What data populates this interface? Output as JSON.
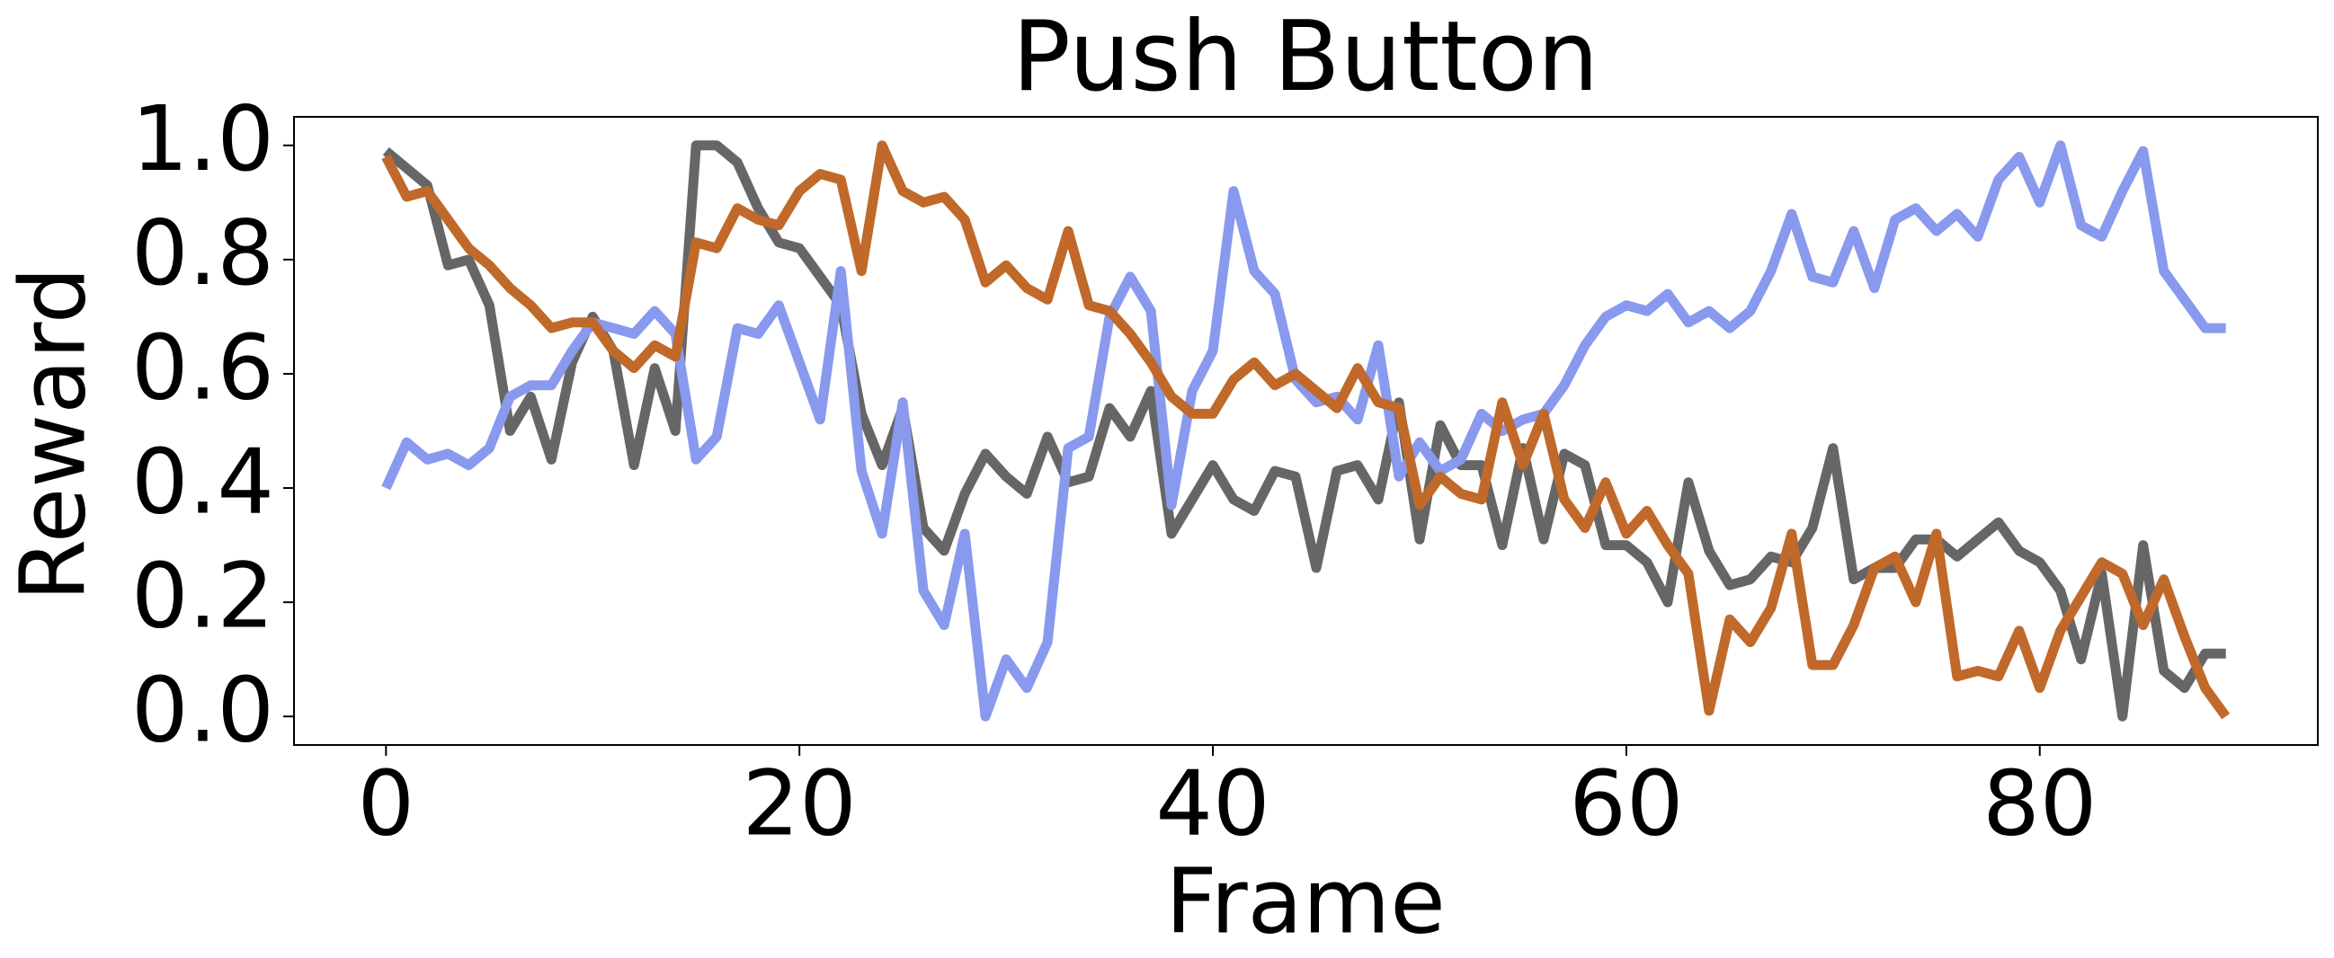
{
  "chart_data": {
    "type": "line",
    "title": "Push Button",
    "xlabel": "Frame",
    "ylabel": "Reward",
    "x": [
      0,
      1,
      2,
      3,
      4,
      5,
      6,
      7,
      8,
      9,
      10,
      11,
      12,
      13,
      14,
      15,
      16,
      17,
      18,
      19,
      20,
      21,
      22,
      23,
      24,
      25,
      26,
      27,
      28,
      29,
      30,
      31,
      32,
      33,
      34,
      35,
      36,
      37,
      38,
      39,
      40,
      41,
      42,
      43,
      44,
      45,
      46,
      47,
      48,
      49,
      50,
      51,
      52,
      53,
      54,
      55,
      56,
      57,
      58,
      59,
      60,
      61,
      62,
      63,
      64,
      65,
      66,
      67,
      68,
      69,
      70,
      71,
      72,
      73,
      74,
      75,
      76,
      77,
      78,
      79,
      80,
      81,
      82,
      83,
      84,
      85,
      86,
      87,
      88,
      89
    ],
    "series": [
      {
        "color": "#666666",
        "values": [
          0.99,
          0.96,
          0.93,
          0.79,
          0.8,
          0.72,
          0.5,
          0.56,
          0.45,
          0.62,
          0.7,
          0.64,
          0.44,
          0.61,
          0.5,
          1.0,
          1.0,
          0.97,
          0.89,
          0.83,
          0.82,
          0.77,
          0.72,
          0.53,
          0.44,
          0.54,
          0.33,
          0.29,
          0.39,
          0.46,
          0.42,
          0.39,
          0.49,
          0.41,
          0.42,
          0.54,
          0.49,
          0.57,
          0.32,
          0.38,
          0.44,
          0.38,
          0.36,
          0.43,
          0.42,
          0.26,
          0.43,
          0.44,
          0.38,
          0.55,
          0.31,
          0.51,
          0.44,
          0.44,
          0.3,
          0.47,
          0.31,
          0.46,
          0.44,
          0.3,
          0.3,
          0.27,
          0.2,
          0.41,
          0.29,
          0.23,
          0.24,
          0.28,
          0.27,
          0.33,
          0.47,
          0.24,
          0.26,
          0.26,
          0.31,
          0.31,
          0.28,
          0.31,
          0.34,
          0.29,
          0.27,
          0.22,
          0.1,
          0.25,
          0.0,
          0.3,
          0.08,
          0.05,
          0.11,
          0.11
        ]
      },
      {
        "color": "#8899ee",
        "values": [
          0.4,
          0.48,
          0.45,
          0.46,
          0.44,
          0.47,
          0.56,
          0.58,
          0.58,
          0.64,
          0.69,
          0.68,
          0.67,
          0.71,
          0.67,
          0.45,
          0.49,
          0.68,
          0.67,
          0.72,
          0.62,
          0.52,
          0.78,
          0.43,
          0.32,
          0.55,
          0.22,
          0.16,
          0.32,
          0.0,
          0.1,
          0.05,
          0.13,
          0.47,
          0.49,
          0.7,
          0.77,
          0.71,
          0.37,
          0.57,
          0.64,
          0.92,
          0.78,
          0.74,
          0.59,
          0.55,
          0.56,
          0.52,
          0.65,
          0.42,
          0.48,
          0.43,
          0.45,
          0.53,
          0.5,
          0.52,
          0.53,
          0.58,
          0.65,
          0.7,
          0.72,
          0.71,
          0.74,
          0.69,
          0.71,
          0.68,
          0.71,
          0.78,
          0.88,
          0.77,
          0.76,
          0.85,
          0.75,
          0.87,
          0.89,
          0.85,
          0.88,
          0.84,
          0.94,
          0.98,
          0.9,
          1.0,
          0.86,
          0.84,
          0.92,
          0.99,
          0.78,
          0.73,
          0.68,
          0.68
        ]
      },
      {
        "color": "#c0692a",
        "values": [
          0.98,
          0.91,
          0.92,
          0.87,
          0.82,
          0.79,
          0.75,
          0.72,
          0.68,
          0.69,
          0.69,
          0.64,
          0.61,
          0.65,
          0.63,
          0.83,
          0.82,
          0.89,
          0.87,
          0.86,
          0.92,
          0.95,
          0.94,
          0.78,
          1.0,
          0.92,
          0.9,
          0.91,
          0.87,
          0.76,
          0.79,
          0.75,
          0.73,
          0.85,
          0.72,
          0.71,
          0.67,
          0.62,
          0.56,
          0.53,
          0.53,
          0.59,
          0.62,
          0.58,
          0.6,
          0.57,
          0.54,
          0.61,
          0.55,
          0.54,
          0.37,
          0.42,
          0.39,
          0.38,
          0.55,
          0.44,
          0.53,
          0.38,
          0.33,
          0.41,
          0.32,
          0.36,
          0.3,
          0.25,
          0.01,
          0.17,
          0.13,
          0.19,
          0.32,
          0.09,
          0.09,
          0.16,
          0.26,
          0.28,
          0.2,
          0.32,
          0.07,
          0.08,
          0.07,
          0.15,
          0.05,
          0.15,
          0.21,
          0.27,
          0.25,
          0.16,
          0.24,
          0.14,
          0.05,
          0.0
        ]
      }
    ],
    "xlim": [
      -4.45,
      93.45
    ],
    "ylim": [
      -0.05,
      1.05
    ],
    "xticks": [
      0,
      20,
      40,
      60,
      80
    ],
    "yticks": [
      {
        "value": 0,
        "label": "0.0"
      },
      {
        "value": 0.2,
        "label": "0.2"
      },
      {
        "value": 0.4,
        "label": "0.4"
      },
      {
        "value": 0.6,
        "label": "0.6"
      },
      {
        "value": 0.8,
        "label": "0.8"
      },
      {
        "value": 1,
        "label": "1.0"
      }
    ]
  }
}
